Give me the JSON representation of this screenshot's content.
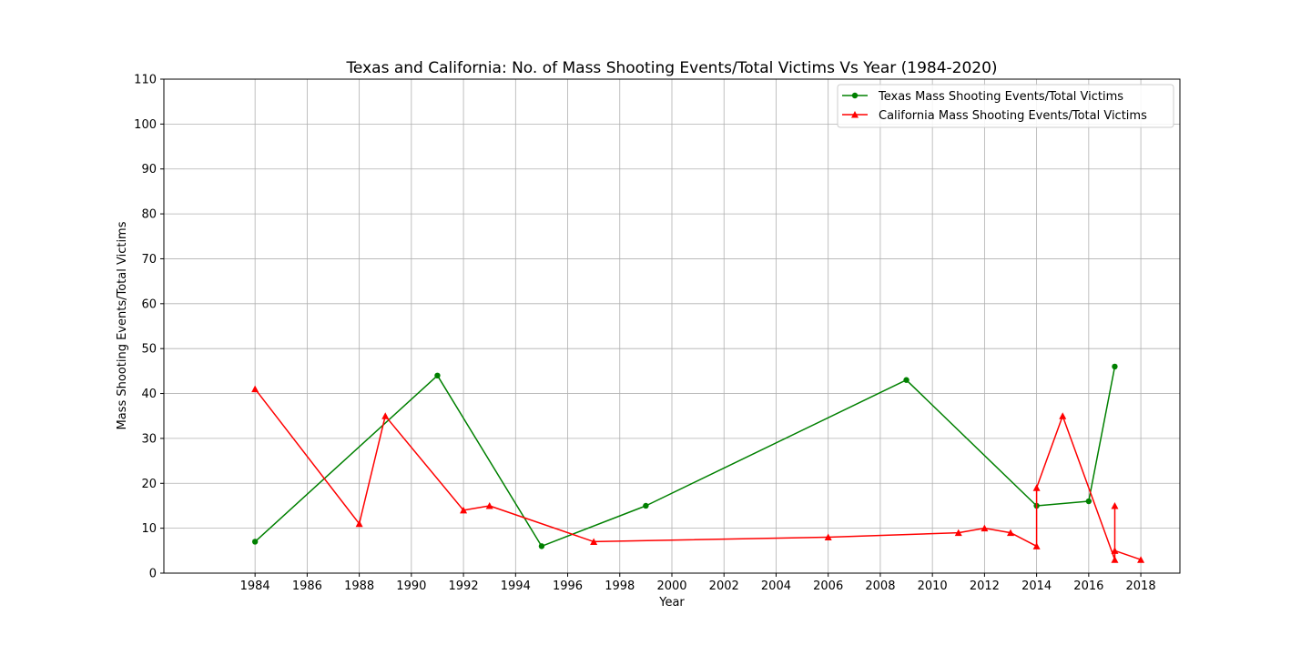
{
  "chart_data": {
    "type": "line",
    "title": "Texas and California: No. of Mass Shooting Events/Total Victims Vs Year (1984-2020)",
    "xlabel": "Year",
    "ylabel": "Mass Shooting Events/Total Victims",
    "xlim": [
      1980.5,
      2019.5
    ],
    "ylim": [
      0,
      110
    ],
    "x_ticks": [
      1984,
      1986,
      1988,
      1990,
      1992,
      1994,
      1996,
      1998,
      2000,
      2002,
      2004,
      2006,
      2008,
      2010,
      2012,
      2014,
      2016,
      2018
    ],
    "y_ticks": [
      0,
      10,
      20,
      30,
      40,
      50,
      60,
      70,
      80,
      90,
      100,
      110
    ],
    "grid": true,
    "legend_position": "top-right",
    "series": [
      {
        "name": "Texas Mass Shooting Events/Total Victims",
        "color": "#008000",
        "marker": "circle",
        "x": [
          1984,
          1991,
          1995,
          1999,
          2009,
          2014,
          2016,
          2017
        ],
        "y": [
          7,
          44,
          6,
          15,
          43,
          15,
          16,
          46
        ]
      },
      {
        "name": "California Mass Shooting Events/Total Victims",
        "color": "#ff0000",
        "marker": "triangle",
        "x": [
          1984,
          1988,
          1989,
          1992,
          1993,
          1997,
          2006,
          2011,
          2012,
          2013,
          2014,
          2014,
          2015,
          2017,
          2017,
          2017,
          2018
        ],
        "y": [
          41,
          11,
          35,
          14,
          15,
          7,
          8,
          9,
          10,
          9,
          6,
          19,
          35,
          3,
          15,
          5,
          3
        ]
      }
    ]
  }
}
